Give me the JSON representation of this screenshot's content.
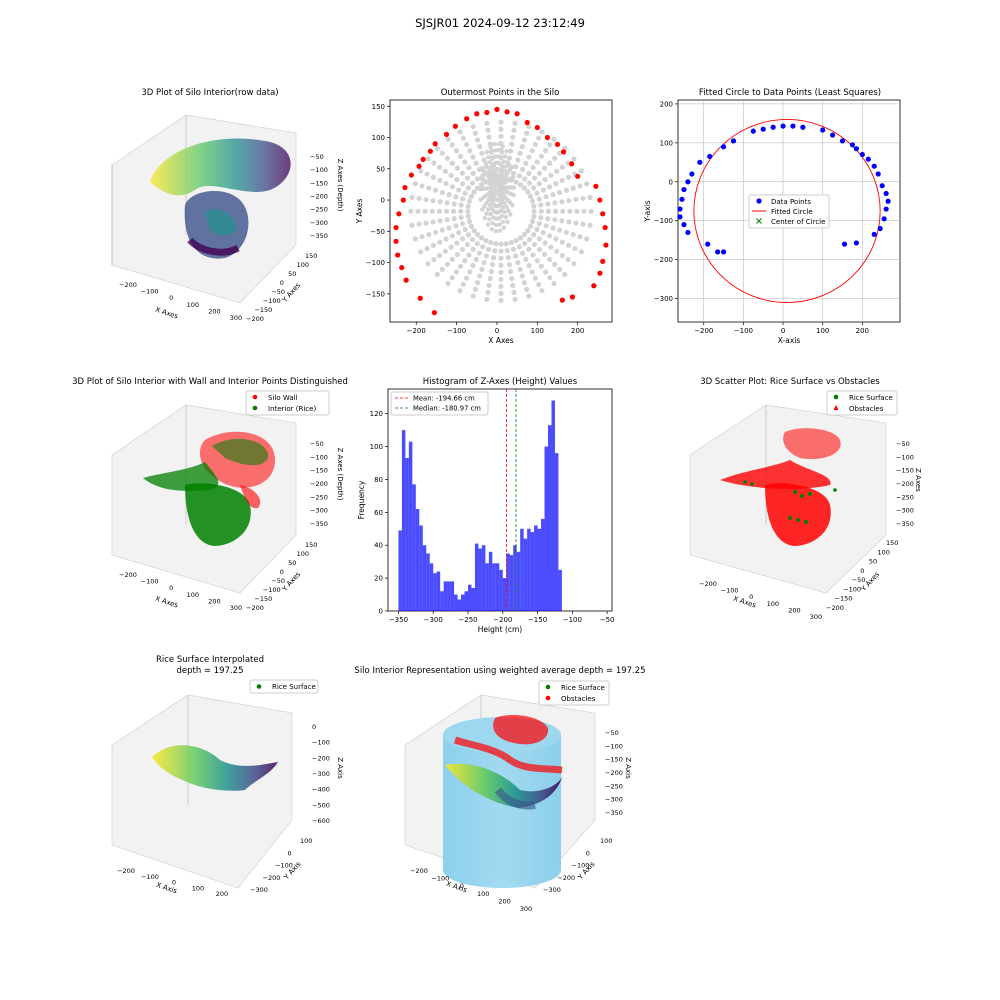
{
  "figure": {
    "suptitle": "SJSJR01 2024-09-12 23:12:49"
  },
  "panels": {
    "p1": {
      "title": "3D Plot of Silo Interior(row data)",
      "xlabel": "X Axes",
      "ylabel": "Y Axes",
      "zlabel": "Z Axes (Depth)",
      "xticks": [
        "−200",
        "−100",
        "0",
        "100",
        "200",
        "300"
      ],
      "yticks": [
        "150",
        "100",
        "50",
        "0",
        "−50",
        "−100",
        "−150",
        "−200"
      ],
      "zticks": [
        "−50",
        "−100",
        "−150",
        "−200",
        "−250",
        "−300",
        "−350"
      ]
    },
    "p2": {
      "title": "Outermost Points in the Silo",
      "xlabel": "X Axes",
      "ylabel": "Y Axes"
    },
    "p3": {
      "title": "Fitted Circle to Data Points (Least Squares)",
      "xlabel": "X-axis",
      "ylabel": "Y-axis",
      "legend": [
        "Data Points",
        "Fitted Circle",
        "Center of Circle"
      ]
    },
    "p4": {
      "title": "3D Plot of Silo Interior with Wall and Interior Points Distinguished",
      "xlabel": "X Axes",
      "ylabel": "Y Axes",
      "zlabel": "Z Axes (Depth)",
      "legend": [
        "Silo Wall",
        "Interior (Rice)"
      ],
      "xticks": [
        "−200",
        "−100",
        "0",
        "100",
        "200",
        "300"
      ],
      "yticks": [
        "150",
        "100",
        "50",
        "0",
        "−50",
        "−100",
        "−150",
        "−200"
      ],
      "zticks": [
        "−50",
        "−100",
        "−150",
        "−200",
        "−250",
        "−300",
        "−350"
      ]
    },
    "p5": {
      "title": "Histogram of Z-Axes (Height) Values",
      "xlabel": "Height (cm)",
      "ylabel": "Frequency",
      "legend": [
        "Mean: -194.66 cm",
        "Median: -180.97 cm"
      ]
    },
    "p6": {
      "title": "3D Scatter Plot: Rice Surface vs Obstacles",
      "xlabel": "X Axes",
      "ylabel": "Y Axes",
      "zlabel": "Z Axes",
      "legend": [
        "Rice Surface",
        "Obstacles"
      ],
      "xticks": [
        "−200",
        "−100",
        "0",
        "100",
        "200",
        "300"
      ],
      "yticks": [
        "150",
        "100",
        "50",
        "0",
        "−50",
        "−100",
        "−150",
        "−200"
      ],
      "zticks": [
        "−50",
        "−100",
        "−150",
        "−200",
        "−250",
        "−300",
        "−350"
      ]
    },
    "p7": {
      "title_line1": "Rice Surface Interpolated",
      "title_line2": "depth = 197.25",
      "xlabel": "X Axis",
      "ylabel": "Y Axis",
      "zlabel": "Z Axis",
      "legend": [
        "Rice Surface"
      ],
      "xticks": [
        "−200",
        "−100",
        "0",
        "100",
        "200"
      ],
      "yticks": [
        "100",
        "0",
        "−100",
        "−200",
        "−300"
      ],
      "zticks": [
        "0",
        "−100",
        "−200",
        "−300",
        "−400",
        "−500",
        "−600"
      ]
    },
    "p8": {
      "title": "Silo Interior Representation using weighted average depth = 197.25",
      "xlabel": "X Axis",
      "ylabel": "Y Axis",
      "zlabel": "Z Axis",
      "legend": [
        "Rice Surface",
        "Obstacles"
      ],
      "xticks": [
        "−200",
        "−100",
        "0",
        "100",
        "200",
        "300"
      ],
      "yticks": [
        "100",
        "0",
        "−100",
        "−200",
        "−300"
      ],
      "zticks": [
        "−50",
        "−100",
        "−150",
        "−200",
        "−250",
        "−300",
        "−350"
      ]
    }
  },
  "colors": {
    "wall": "#ff0000",
    "rice": "#008000",
    "grey": "#d3d3d3",
    "hist": "#0000ff",
    "silo": "#87ceeb",
    "mean": "#ff0000",
    "median": "#008000"
  },
  "chart_data": [
    {
      "id": "outermost",
      "type": "scatter",
      "xlim": [
        -265,
        285
      ],
      "ylim": [
        -195,
        160
      ],
      "xticks": [
        -200,
        -100,
        0,
        100,
        200
      ],
      "yticks": [
        -150,
        -100,
        -50,
        0,
        50,
        100,
        150
      ],
      "outer_points": [
        [
          -155,
          -180
        ],
        [
          -190,
          -157
        ],
        [
          -225,
          -128
        ],
        [
          -236,
          -108
        ],
        [
          -246,
          -88
        ],
        [
          -250,
          -66
        ],
        [
          -250,
          -44
        ],
        [
          -243,
          -22
        ],
        [
          -232,
          0
        ],
        [
          -228,
          20
        ],
        [
          -212,
          40
        ],
        [
          -193,
          54
        ],
        [
          -183,
          65
        ],
        [
          -165,
          78
        ],
        [
          -153,
          90
        ],
        [
          -125,
          105
        ],
        [
          -103,
          118
        ],
        [
          -75,
          130
        ],
        [
          -50,
          138
        ],
        [
          -25,
          140
        ],
        [
          0,
          145
        ],
        [
          25,
          141
        ],
        [
          50,
          138
        ],
        [
          75,
          124
        ],
        [
          100,
          116
        ],
        [
          125,
          100
        ],
        [
          150,
          89
        ],
        [
          165,
          77
        ],
        [
          185,
          58
        ],
        [
          200,
          38
        ],
        [
          245,
          22
        ],
        [
          255,
          0
        ],
        [
          262,
          -22
        ],
        [
          268,
          -44
        ],
        [
          270,
          -72
        ],
        [
          262,
          -98
        ],
        [
          255,
          -117
        ],
        [
          240,
          -137
        ],
        [
          187,
          -155
        ],
        [
          162,
          -160
        ]
      ],
      "grey_label": "interior points (grey)"
    },
    {
      "id": "fitted_circle",
      "type": "scatter",
      "xlim": [
        -265,
        295
      ],
      "ylim": [
        -360,
        210
      ],
      "xticks": [
        -200,
        -100,
        0,
        100,
        200
      ],
      "yticks": [
        -300,
        -200,
        -100,
        0,
        100,
        200
      ],
      "data_points": [
        [
          -165,
          -180
        ],
        [
          -150,
          -180
        ],
        [
          -190,
          -160
        ],
        [
          -240,
          -130
        ],
        [
          -250,
          -110
        ],
        [
          -260,
          -90
        ],
        [
          -260,
          -70
        ],
        [
          -255,
          -45
        ],
        [
          -250,
          -20
        ],
        [
          -240,
          0
        ],
        [
          -230,
          20
        ],
        [
          -210,
          50
        ],
        [
          -185,
          65
        ],
        [
          -150,
          90
        ],
        [
          -125,
          105
        ],
        [
          -75,
          130
        ],
        [
          -50,
          135
        ],
        [
          -25,
          140
        ],
        [
          0,
          143
        ],
        [
          25,
          143
        ],
        [
          50,
          140
        ],
        [
          100,
          133
        ],
        [
          125,
          120
        ],
        [
          150,
          105
        ],
        [
          175,
          95
        ],
        [
          185,
          85
        ],
        [
          200,
          70
        ],
        [
          215,
          58
        ],
        [
          230,
          40
        ],
        [
          240,
          20
        ],
        [
          250,
          -10
        ],
        [
          260,
          -30
        ],
        [
          265,
          -50
        ],
        [
          260,
          -70
        ],
        [
          255,
          -95
        ],
        [
          245,
          -120
        ],
        [
          230,
          -135
        ],
        [
          185,
          -157
        ],
        [
          155,
          -160
        ]
      ],
      "circle": {
        "cx": 10,
        "cy": -75,
        "r": 235
      },
      "center": [
        10,
        -75
      ]
    },
    {
      "id": "histogram",
      "type": "bar",
      "bin_edges_start": -350,
      "bin_width": 5,
      "values": [
        49,
        110,
        93,
        103,
        77,
        62,
        52,
        40,
        35,
        29,
        23,
        24,
        12,
        18,
        18,
        18,
        10,
        7,
        10,
        12,
        16,
        14,
        41,
        38,
        40,
        29,
        36,
        29,
        29,
        25,
        20,
        35,
        34,
        40,
        36,
        50,
        44,
        50,
        48,
        52,
        50,
        56,
        100,
        113,
        128,
        96,
        25
      ],
      "xlim": [
        -365,
        -43
      ],
      "ylim": [
        0,
        135
      ],
      "xticks": [
        -350,
        -300,
        -250,
        -200,
        -150,
        -100,
        -50
      ],
      "yticks": [
        0,
        20,
        40,
        60,
        80,
        100,
        120
      ],
      "mean": -194.66,
      "median": -180.97
    }
  ]
}
